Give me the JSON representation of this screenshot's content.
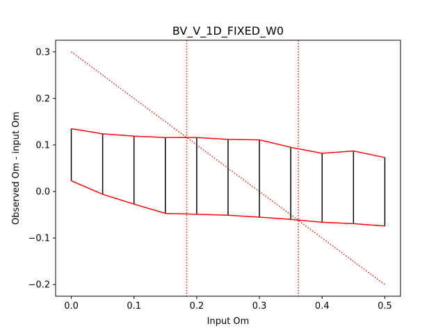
{
  "chart_data": {
    "type": "line",
    "title": "BV_V_1D_FIXED_W0",
    "xlabel": "Input Om",
    "ylabel": "Observed Om - input Om",
    "xlim": [
      -0.025,
      0.525
    ],
    "ylim": [
      -0.225,
      0.325
    ],
    "x_ticks": [
      0.0,
      0.1,
      0.2,
      0.3,
      0.4,
      0.5
    ],
    "x_tick_labels": [
      "0.0",
      "0.1",
      "0.2",
      "0.3",
      "0.4",
      "0.5"
    ],
    "y_ticks": [
      -0.2,
      -0.1,
      0.0,
      0.1,
      0.2,
      0.3
    ],
    "y_tick_labels": [
      "−0.2",
      "−0.1",
      "0.0",
      "0.1",
      "0.2",
      "0.3"
    ],
    "grid": false,
    "legend": "none",
    "x": [
      0.0,
      0.05,
      0.1,
      0.15,
      0.2,
      0.25,
      0.3,
      0.35,
      0.4,
      0.45,
      0.5
    ],
    "series": [
      {
        "style": "red solid line",
        "color": "#ff0000",
        "values": [
          0.135,
          0.124,
          0.119,
          0.116,
          0.116,
          0.112,
          0.111,
          0.095,
          0.082,
          0.087,
          0.073
        ]
      },
      {
        "style": "red solid line",
        "color": "#ff0000",
        "values": [
          0.023,
          -0.006,
          -0.027,
          -0.047,
          -0.049,
          -0.051,
          -0.055,
          -0.06,
          -0.066,
          -0.069,
          -0.074
        ]
      }
    ],
    "error_bars": {
      "color": "#000000",
      "x": [
        0.0,
        0.05,
        0.1,
        0.15,
        0.2,
        0.25,
        0.3,
        0.35,
        0.4,
        0.45,
        0.5
      ],
      "upper": [
        0.135,
        0.124,
        0.119,
        0.116,
        0.116,
        0.112,
        0.111,
        0.095,
        0.082,
        0.087,
        0.073
      ],
      "lower": [
        0.023,
        -0.006,
        -0.027,
        -0.047,
        -0.049,
        -0.051,
        -0.055,
        -0.06,
        -0.066,
        -0.069,
        -0.074
      ]
    },
    "reference_line": {
      "style": "red dotted diagonal",
      "color": "#ff0000",
      "points": [
        [
          0.0,
          0.3
        ],
        [
          0.5,
          -0.2
        ]
      ]
    },
    "vertical_lines": {
      "style": "red dotted",
      "color": "#ff0000",
      "x": [
        0.184,
        0.362
      ]
    }
  }
}
